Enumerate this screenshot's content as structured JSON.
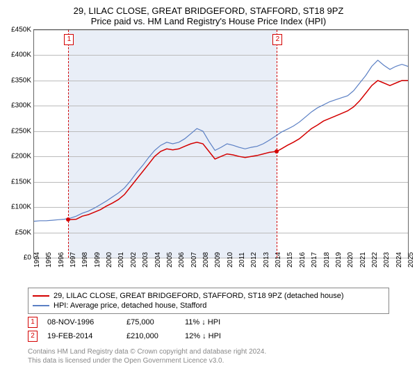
{
  "title": "29, LILAC CLOSE, GREAT BRIDGEFORD, STAFFORD, ST18 9PZ",
  "subtitle": "Price paid vs. HM Land Registry's House Price Index (HPI)",
  "chart": {
    "type": "line",
    "x_years": [
      1994,
      1995,
      1996,
      1997,
      1998,
      1999,
      2000,
      2001,
      2002,
      2003,
      2004,
      2005,
      2006,
      2007,
      2008,
      2009,
      2010,
      2011,
      2012,
      2013,
      2014,
      2015,
      2016,
      2017,
      2018,
      2019,
      2020,
      2021,
      2022,
      2023,
      2024,
      2025
    ],
    "ylim": [
      0,
      450000
    ],
    "ytick_step": 50000,
    "ytick_labels": [
      "£0",
      "£50K",
      "£100K",
      "£150K",
      "£200K",
      "£250K",
      "£300K",
      "£350K",
      "£400K",
      "£450K"
    ],
    "background_color": "#ffffff",
    "shaded_color": "#e9eef7",
    "grid_color": "#bbbbbb",
    "series": [
      {
        "name": "property",
        "label": "29, LILAC CLOSE, GREAT BRIDGEFORD, STAFFORD, ST18 9PZ (detached house)",
        "color": "#d40000",
        "line_width": 1.5,
        "data": [
          [
            1996.85,
            75000
          ],
          [
            1997.5,
            76000
          ],
          [
            1998,
            82000
          ],
          [
            1998.5,
            85000
          ],
          [
            1999,
            90000
          ],
          [
            1999.5,
            95000
          ],
          [
            2000,
            102000
          ],
          [
            2000.5,
            108000
          ],
          [
            2001,
            115000
          ],
          [
            2001.5,
            125000
          ],
          [
            2002,
            140000
          ],
          [
            2002.5,
            155000
          ],
          [
            2003,
            170000
          ],
          [
            2003.5,
            185000
          ],
          [
            2004,
            200000
          ],
          [
            2004.5,
            210000
          ],
          [
            2005,
            215000
          ],
          [
            2005.5,
            213000
          ],
          [
            2006,
            215000
          ],
          [
            2006.5,
            220000
          ],
          [
            2007,
            225000
          ],
          [
            2007.5,
            228000
          ],
          [
            2008,
            225000
          ],
          [
            2008.5,
            210000
          ],
          [
            2009,
            195000
          ],
          [
            2009.5,
            200000
          ],
          [
            2010,
            205000
          ],
          [
            2010.5,
            203000
          ],
          [
            2011,
            200000
          ],
          [
            2011.5,
            198000
          ],
          [
            2012,
            200000
          ],
          [
            2012.5,
            202000
          ],
          [
            2013,
            205000
          ],
          [
            2013.5,
            208000
          ],
          [
            2014.13,
            210000
          ],
          [
            2014.5,
            215000
          ],
          [
            2015,
            222000
          ],
          [
            2015.5,
            228000
          ],
          [
            2016,
            235000
          ],
          [
            2016.5,
            245000
          ],
          [
            2017,
            255000
          ],
          [
            2017.5,
            262000
          ],
          [
            2018,
            270000
          ],
          [
            2018.5,
            275000
          ],
          [
            2019,
            280000
          ],
          [
            2019.5,
            285000
          ],
          [
            2020,
            290000
          ],
          [
            2020.5,
            298000
          ],
          [
            2021,
            310000
          ],
          [
            2021.5,
            325000
          ],
          [
            2022,
            340000
          ],
          [
            2022.5,
            350000
          ],
          [
            2023,
            345000
          ],
          [
            2023.5,
            340000
          ],
          [
            2024,
            345000
          ],
          [
            2024.5,
            350000
          ],
          [
            2025,
            350000
          ]
        ]
      },
      {
        "name": "hpi",
        "label": "HPI: Average price, detached house, Stafford",
        "color": "#5a7fc4",
        "line_width": 1.2,
        "data": [
          [
            1994,
            72000
          ],
          [
            1994.5,
            73000
          ],
          [
            1995,
            73000
          ],
          [
            1995.5,
            74000
          ],
          [
            1996,
            75000
          ],
          [
            1996.5,
            76000
          ],
          [
            1997,
            78000
          ],
          [
            1997.5,
            82000
          ],
          [
            1998,
            88000
          ],
          [
            1998.5,
            92000
          ],
          [
            1999,
            98000
          ],
          [
            1999.5,
            105000
          ],
          [
            2000,
            112000
          ],
          [
            2000.5,
            120000
          ],
          [
            2001,
            128000
          ],
          [
            2001.5,
            138000
          ],
          [
            2002,
            152000
          ],
          [
            2002.5,
            168000
          ],
          [
            2003,
            182000
          ],
          [
            2003.5,
            198000
          ],
          [
            2004,
            212000
          ],
          [
            2004.5,
            222000
          ],
          [
            2005,
            228000
          ],
          [
            2005.5,
            225000
          ],
          [
            2006,
            228000
          ],
          [
            2006.5,
            235000
          ],
          [
            2007,
            245000
          ],
          [
            2007.5,
            255000
          ],
          [
            2008,
            250000
          ],
          [
            2008.5,
            230000
          ],
          [
            2009,
            212000
          ],
          [
            2009.5,
            218000
          ],
          [
            2010,
            225000
          ],
          [
            2010.5,
            222000
          ],
          [
            2011,
            218000
          ],
          [
            2011.5,
            215000
          ],
          [
            2012,
            218000
          ],
          [
            2012.5,
            220000
          ],
          [
            2013,
            225000
          ],
          [
            2013.5,
            232000
          ],
          [
            2014,
            240000
          ],
          [
            2014.5,
            248000
          ],
          [
            2015,
            254000
          ],
          [
            2015.5,
            260000
          ],
          [
            2016,
            268000
          ],
          [
            2016.5,
            278000
          ],
          [
            2017,
            288000
          ],
          [
            2017.5,
            296000
          ],
          [
            2018,
            302000
          ],
          [
            2018.5,
            308000
          ],
          [
            2019,
            312000
          ],
          [
            2019.5,
            316000
          ],
          [
            2020,
            320000
          ],
          [
            2020.5,
            330000
          ],
          [
            2021,
            345000
          ],
          [
            2021.5,
            360000
          ],
          [
            2022,
            378000
          ],
          [
            2022.5,
            390000
          ],
          [
            2023,
            380000
          ],
          [
            2023.5,
            372000
          ],
          [
            2024,
            378000
          ],
          [
            2024.5,
            382000
          ],
          [
            2025,
            378000
          ]
        ]
      }
    ],
    "markers": [
      {
        "n": "1",
        "year": 1996.85,
        "value": 75000,
        "color": "#d40000"
      },
      {
        "n": "2",
        "year": 2014.13,
        "value": 210000,
        "color": "#d40000"
      }
    ],
    "shaded_range": [
      1996.85,
      2014.13
    ]
  },
  "legend": {
    "items": [
      {
        "color": "#d40000",
        "label": "29, LILAC CLOSE, GREAT BRIDGEFORD, STAFFORD, ST18 9PZ (detached house)"
      },
      {
        "color": "#5a7fc4",
        "label": "HPI: Average price, detached house, Stafford"
      }
    ]
  },
  "sales": [
    {
      "n": "1",
      "color": "#d40000",
      "date": "08-NOV-1996",
      "price": "£75,000",
      "diff": "11% ↓ HPI"
    },
    {
      "n": "2",
      "color": "#d40000",
      "date": "19-FEB-2014",
      "price": "£210,000",
      "diff": "12% ↓ HPI"
    }
  ],
  "footer1": "Contains HM Land Registry data © Crown copyright and database right 2024.",
  "footer2": "This data is licensed under the Open Government Licence v3.0."
}
